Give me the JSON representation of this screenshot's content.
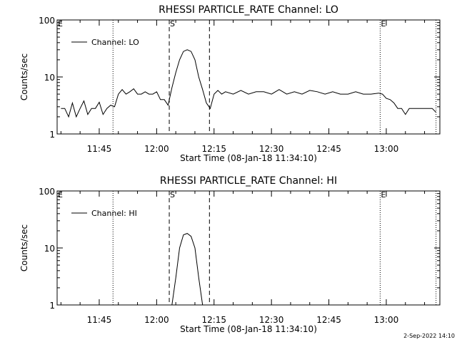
{
  "footer": {
    "date_stamp": "2-Sep-2022 14:10"
  },
  "colors": {
    "background": "#ffffff",
    "foreground": "#000000"
  },
  "chart_data": [
    {
      "type": "line",
      "title": "RHESSI PARTICLE_RATE Channel: LO",
      "xlabel": "Start Time (08-Jan-18 11:34:10)",
      "ylabel": "Counts/sec",
      "y_scale": "log",
      "ylim": [
        1,
        100
      ],
      "xlim": [
        "11:34",
        "13:14"
      ],
      "x_ticks": [
        "11:45",
        "12:00",
        "12:15",
        "12:30",
        "12:45",
        "13:00"
      ],
      "y_ticks": [
        "1",
        "10",
        "100"
      ],
      "legend": {
        "entries": [
          "Channel: LO"
        ],
        "position": "top-left"
      },
      "markers": [
        {
          "label": "E",
          "time": "11:34",
          "style": "dotted"
        },
        {
          "label": "",
          "time": "11:48.6",
          "style": "dotted"
        },
        {
          "label": "S",
          "time": "12:03.3",
          "style": "dashed"
        },
        {
          "label": "",
          "time": "12:13.8",
          "style": "dashed"
        },
        {
          "label": "E",
          "time": "12:58.4",
          "style": "dotted"
        },
        {
          "label": "",
          "time": "13:13",
          "style": "dotted"
        }
      ],
      "series": [
        {
          "name": "Channel: LO",
          "x": [
            "11:35",
            "11:36",
            "11:37",
            "11:38",
            "11:39",
            "11:40",
            "11:41",
            "11:42",
            "11:43",
            "11:44",
            "11:45",
            "11:46",
            "11:47",
            "11:48",
            "11:49",
            "11:50",
            "11:51",
            "11:52",
            "11:53",
            "11:54",
            "11:55",
            "11:56",
            "11:57",
            "11:58",
            "11:59",
            "12:00",
            "12:01",
            "12:02",
            "12:03",
            "12:04",
            "12:05",
            "12:06",
            "12:07",
            "12:08",
            "12:09",
            "12:10",
            "12:11",
            "12:12",
            "12:13",
            "12:14",
            "12:15",
            "12:16",
            "12:17",
            "12:18",
            "12:20",
            "12:22",
            "12:24",
            "12:26",
            "12:28",
            "12:30",
            "12:32",
            "12:34",
            "12:36",
            "12:38",
            "12:40",
            "12:42",
            "12:44",
            "12:46",
            "12:48",
            "12:50",
            "12:52",
            "12:54",
            "12:56",
            "12:58",
            "12:59",
            "13:00",
            "13:01",
            "13:02",
            "13:03",
            "13:04",
            "13:05",
            "13:06",
            "13:07",
            "13:08",
            "13:09",
            "13:10",
            "13:11",
            "13:12",
            "13:13"
          ],
          "y": [
            2.8,
            2.8,
            2.0,
            3.5,
            2.0,
            2.8,
            3.8,
            2.2,
            2.8,
            2.8,
            3.6,
            2.2,
            2.8,
            3.2,
            3.0,
            5.0,
            6.0,
            5.0,
            5.5,
            6.2,
            5.0,
            5.0,
            5.5,
            5.0,
            5.0,
            5.5,
            4.0,
            4.0,
            3.2,
            6.5,
            12,
            20,
            28,
            30,
            28,
            20,
            10,
            6.0,
            3.5,
            2.8,
            5.0,
            5.8,
            5.0,
            5.5,
            5.0,
            5.8,
            5.0,
            5.5,
            5.5,
            5.0,
            6.0,
            5.0,
            5.5,
            5.0,
            5.8,
            5.5,
            5.0,
            5.5,
            5.0,
            5.0,
            5.5,
            5.0,
            5.0,
            5.2,
            5.0,
            4.2,
            4.0,
            3.5,
            2.8,
            2.8,
            2.2,
            2.8,
            2.8,
            2.8,
            2.8,
            2.8,
            2.8,
            2.8,
            2.4
          ]
        }
      ]
    },
    {
      "type": "line",
      "title": "RHESSI PARTICLE_RATE Channel: HI",
      "xlabel": "Start Time (08-Jan-18 11:34:10)",
      "ylabel": "Counts/sec",
      "y_scale": "log",
      "ylim": [
        1,
        100
      ],
      "xlim": [
        "11:34",
        "13:14"
      ],
      "x_ticks": [
        "11:45",
        "12:00",
        "12:15",
        "12:30",
        "12:45",
        "13:00"
      ],
      "y_ticks": [
        "1",
        "10",
        "100"
      ],
      "legend": {
        "entries": [
          "Channel: HI"
        ],
        "position": "top-left"
      },
      "markers": [
        {
          "label": "E",
          "time": "11:34",
          "style": "dotted"
        },
        {
          "label": "",
          "time": "11:48.6",
          "style": "dotted"
        },
        {
          "label": "S",
          "time": "12:03.3",
          "style": "dashed"
        },
        {
          "label": "",
          "time": "12:13.8",
          "style": "dashed"
        },
        {
          "label": "E",
          "time": "12:58.4",
          "style": "dotted"
        },
        {
          "label": "",
          "time": "13:13",
          "style": "dotted"
        }
      ],
      "series": [
        {
          "name": "Channel: HI",
          "x": [
            "12:04",
            "12:05",
            "12:06",
            "12:07",
            "12:08",
            "12:09",
            "12:10",
            "12:11",
            "12:12"
          ],
          "y": [
            1,
            3,
            10,
            17,
            18,
            16,
            10,
            3,
            1
          ]
        }
      ]
    }
  ]
}
